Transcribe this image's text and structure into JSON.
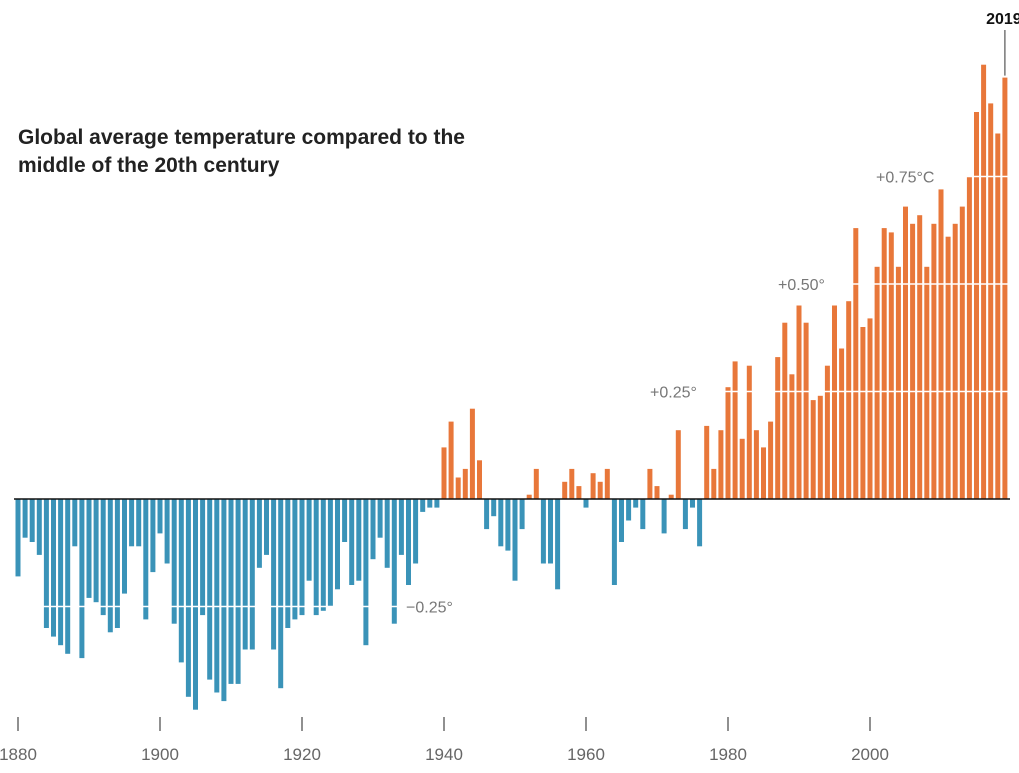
{
  "chart_data": {
    "type": "bar",
    "title": "Global average temperature compared to the middle of the 20th century",
    "x_ticks": [
      1880,
      1900,
      1920,
      1940,
      1960,
      1980,
      2000
    ],
    "x_tick_labels": [
      "1880",
      "1900",
      "1920",
      "1940",
      "1960",
      "1980",
      "2000"
    ],
    "y_gridlines": [
      {
        "value": -0.25,
        "label": "−0.25°"
      },
      {
        "value": 0.25,
        "label": "+0.25°"
      },
      {
        "value": 0.5,
        "label": "+0.50°"
      },
      {
        "value": 0.75,
        "label": "+0.75°C"
      }
    ],
    "highlight": {
      "year": 2019,
      "label": "2019"
    },
    "ylim": [
      -0.52,
      1.04
    ],
    "xlim": [
      1880,
      2019
    ],
    "colors": {
      "positive": "#e8773a",
      "negative": "#3a93b8",
      "zero_line": "#111111",
      "grid": "#ffffff",
      "grid_label": "#777777",
      "highlight_label": "#111111"
    },
    "x": [
      1880,
      1881,
      1882,
      1883,
      1884,
      1885,
      1886,
      1887,
      1888,
      1889,
      1890,
      1891,
      1892,
      1893,
      1894,
      1895,
      1896,
      1897,
      1898,
      1899,
      1900,
      1901,
      1902,
      1903,
      1904,
      1905,
      1906,
      1907,
      1908,
      1909,
      1910,
      1911,
      1912,
      1913,
      1914,
      1915,
      1916,
      1917,
      1918,
      1919,
      1920,
      1921,
      1922,
      1923,
      1924,
      1925,
      1926,
      1927,
      1928,
      1929,
      1930,
      1931,
      1932,
      1933,
      1934,
      1935,
      1936,
      1937,
      1938,
      1939,
      1940,
      1941,
      1942,
      1943,
      1944,
      1945,
      1946,
      1947,
      1948,
      1949,
      1950,
      1951,
      1952,
      1953,
      1954,
      1955,
      1956,
      1957,
      1958,
      1959,
      1960,
      1961,
      1962,
      1963,
      1964,
      1965,
      1966,
      1967,
      1968,
      1969,
      1970,
      1971,
      1972,
      1973,
      1974,
      1975,
      1976,
      1977,
      1978,
      1979,
      1980,
      1981,
      1982,
      1983,
      1984,
      1985,
      1986,
      1987,
      1988,
      1989,
      1990,
      1991,
      1992,
      1993,
      1994,
      1995,
      1996,
      1997,
      1998,
      1999,
      2000,
      2001,
      2002,
      2003,
      2004,
      2005,
      2006,
      2007,
      2008,
      2009,
      2010,
      2011,
      2012,
      2013,
      2014,
      2015,
      2016,
      2017,
      2018,
      2019
    ],
    "values": [
      -0.18,
      -0.09,
      -0.1,
      -0.13,
      -0.3,
      -0.32,
      -0.34,
      -0.36,
      -0.11,
      -0.37,
      -0.23,
      -0.24,
      -0.27,
      -0.31,
      -0.3,
      -0.22,
      -0.11,
      -0.11,
      -0.28,
      -0.17,
      -0.08,
      -0.15,
      -0.29,
      -0.38,
      -0.46,
      -0.49,
      -0.27,
      -0.42,
      -0.45,
      -0.47,
      -0.43,
      -0.43,
      -0.35,
      -0.35,
      -0.16,
      -0.13,
      -0.35,
      -0.44,
      -0.3,
      -0.28,
      -0.27,
      -0.19,
      -0.27,
      -0.26,
      -0.25,
      -0.21,
      -0.1,
      -0.2,
      -0.19,
      -0.34,
      -0.14,
      -0.09,
      -0.16,
      -0.29,
      -0.13,
      -0.2,
      -0.15,
      -0.03,
      -0.02,
      -0.02,
      0.12,
      0.18,
      0.05,
      0.07,
      0.21,
      0.09,
      -0.07,
      -0.04,
      -0.11,
      -0.12,
      -0.19,
      -0.07,
      0.01,
      0.07,
      -0.15,
      -0.15,
      -0.21,
      0.04,
      0.07,
      0.03,
      -0.02,
      0.06,
      0.04,
      0.07,
      -0.2,
      -0.1,
      -0.05,
      -0.02,
      -0.07,
      0.07,
      0.03,
      -0.08,
      0.01,
      0.16,
      -0.07,
      -0.02,
      -0.11,
      0.17,
      0.07,
      0.16,
      0.26,
      0.32,
      0.14,
      0.31,
      0.16,
      0.12,
      0.18,
      0.33,
      0.41,
      0.29,
      0.45,
      0.41,
      0.23,
      0.24,
      0.31,
      0.45,
      0.35,
      0.46,
      0.63,
      0.4,
      0.42,
      0.54,
      0.63,
      0.62,
      0.54,
      0.68,
      0.64,
      0.66,
      0.54,
      0.64,
      0.72,
      0.61,
      0.64,
      0.68,
      0.75,
      0.9,
      1.01,
      0.92,
      0.85,
      0.98
    ]
  }
}
